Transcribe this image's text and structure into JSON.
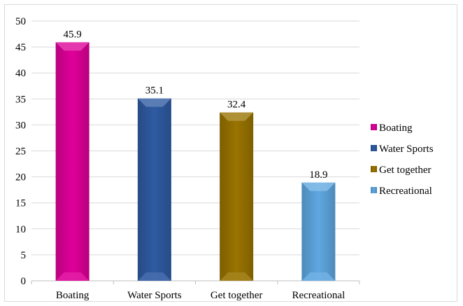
{
  "chart_data": {
    "type": "bar",
    "categories": [
      "Boating",
      "Water Sports",
      "Get together",
      "Recreational"
    ],
    "values": [
      45.9,
      35.1,
      32.4,
      18.9
    ],
    "data_labels": [
      "45.9",
      "35.1",
      "32.4",
      "18.9"
    ],
    "colors": [
      "#e0009a",
      "#2f5ba3",
      "#9a7400",
      "#5fa8e2"
    ],
    "yticks": [
      "0",
      "5",
      "10",
      "15",
      "20",
      "25",
      "30",
      "35",
      "40",
      "45",
      "50"
    ],
    "ylim": [
      0,
      50
    ],
    "grid": true,
    "legend_position": "right",
    "legend": [
      "Boating",
      "Water Sports",
      "Get together",
      "Recreational"
    ],
    "title": "",
    "xlabel": "",
    "ylabel": ""
  }
}
